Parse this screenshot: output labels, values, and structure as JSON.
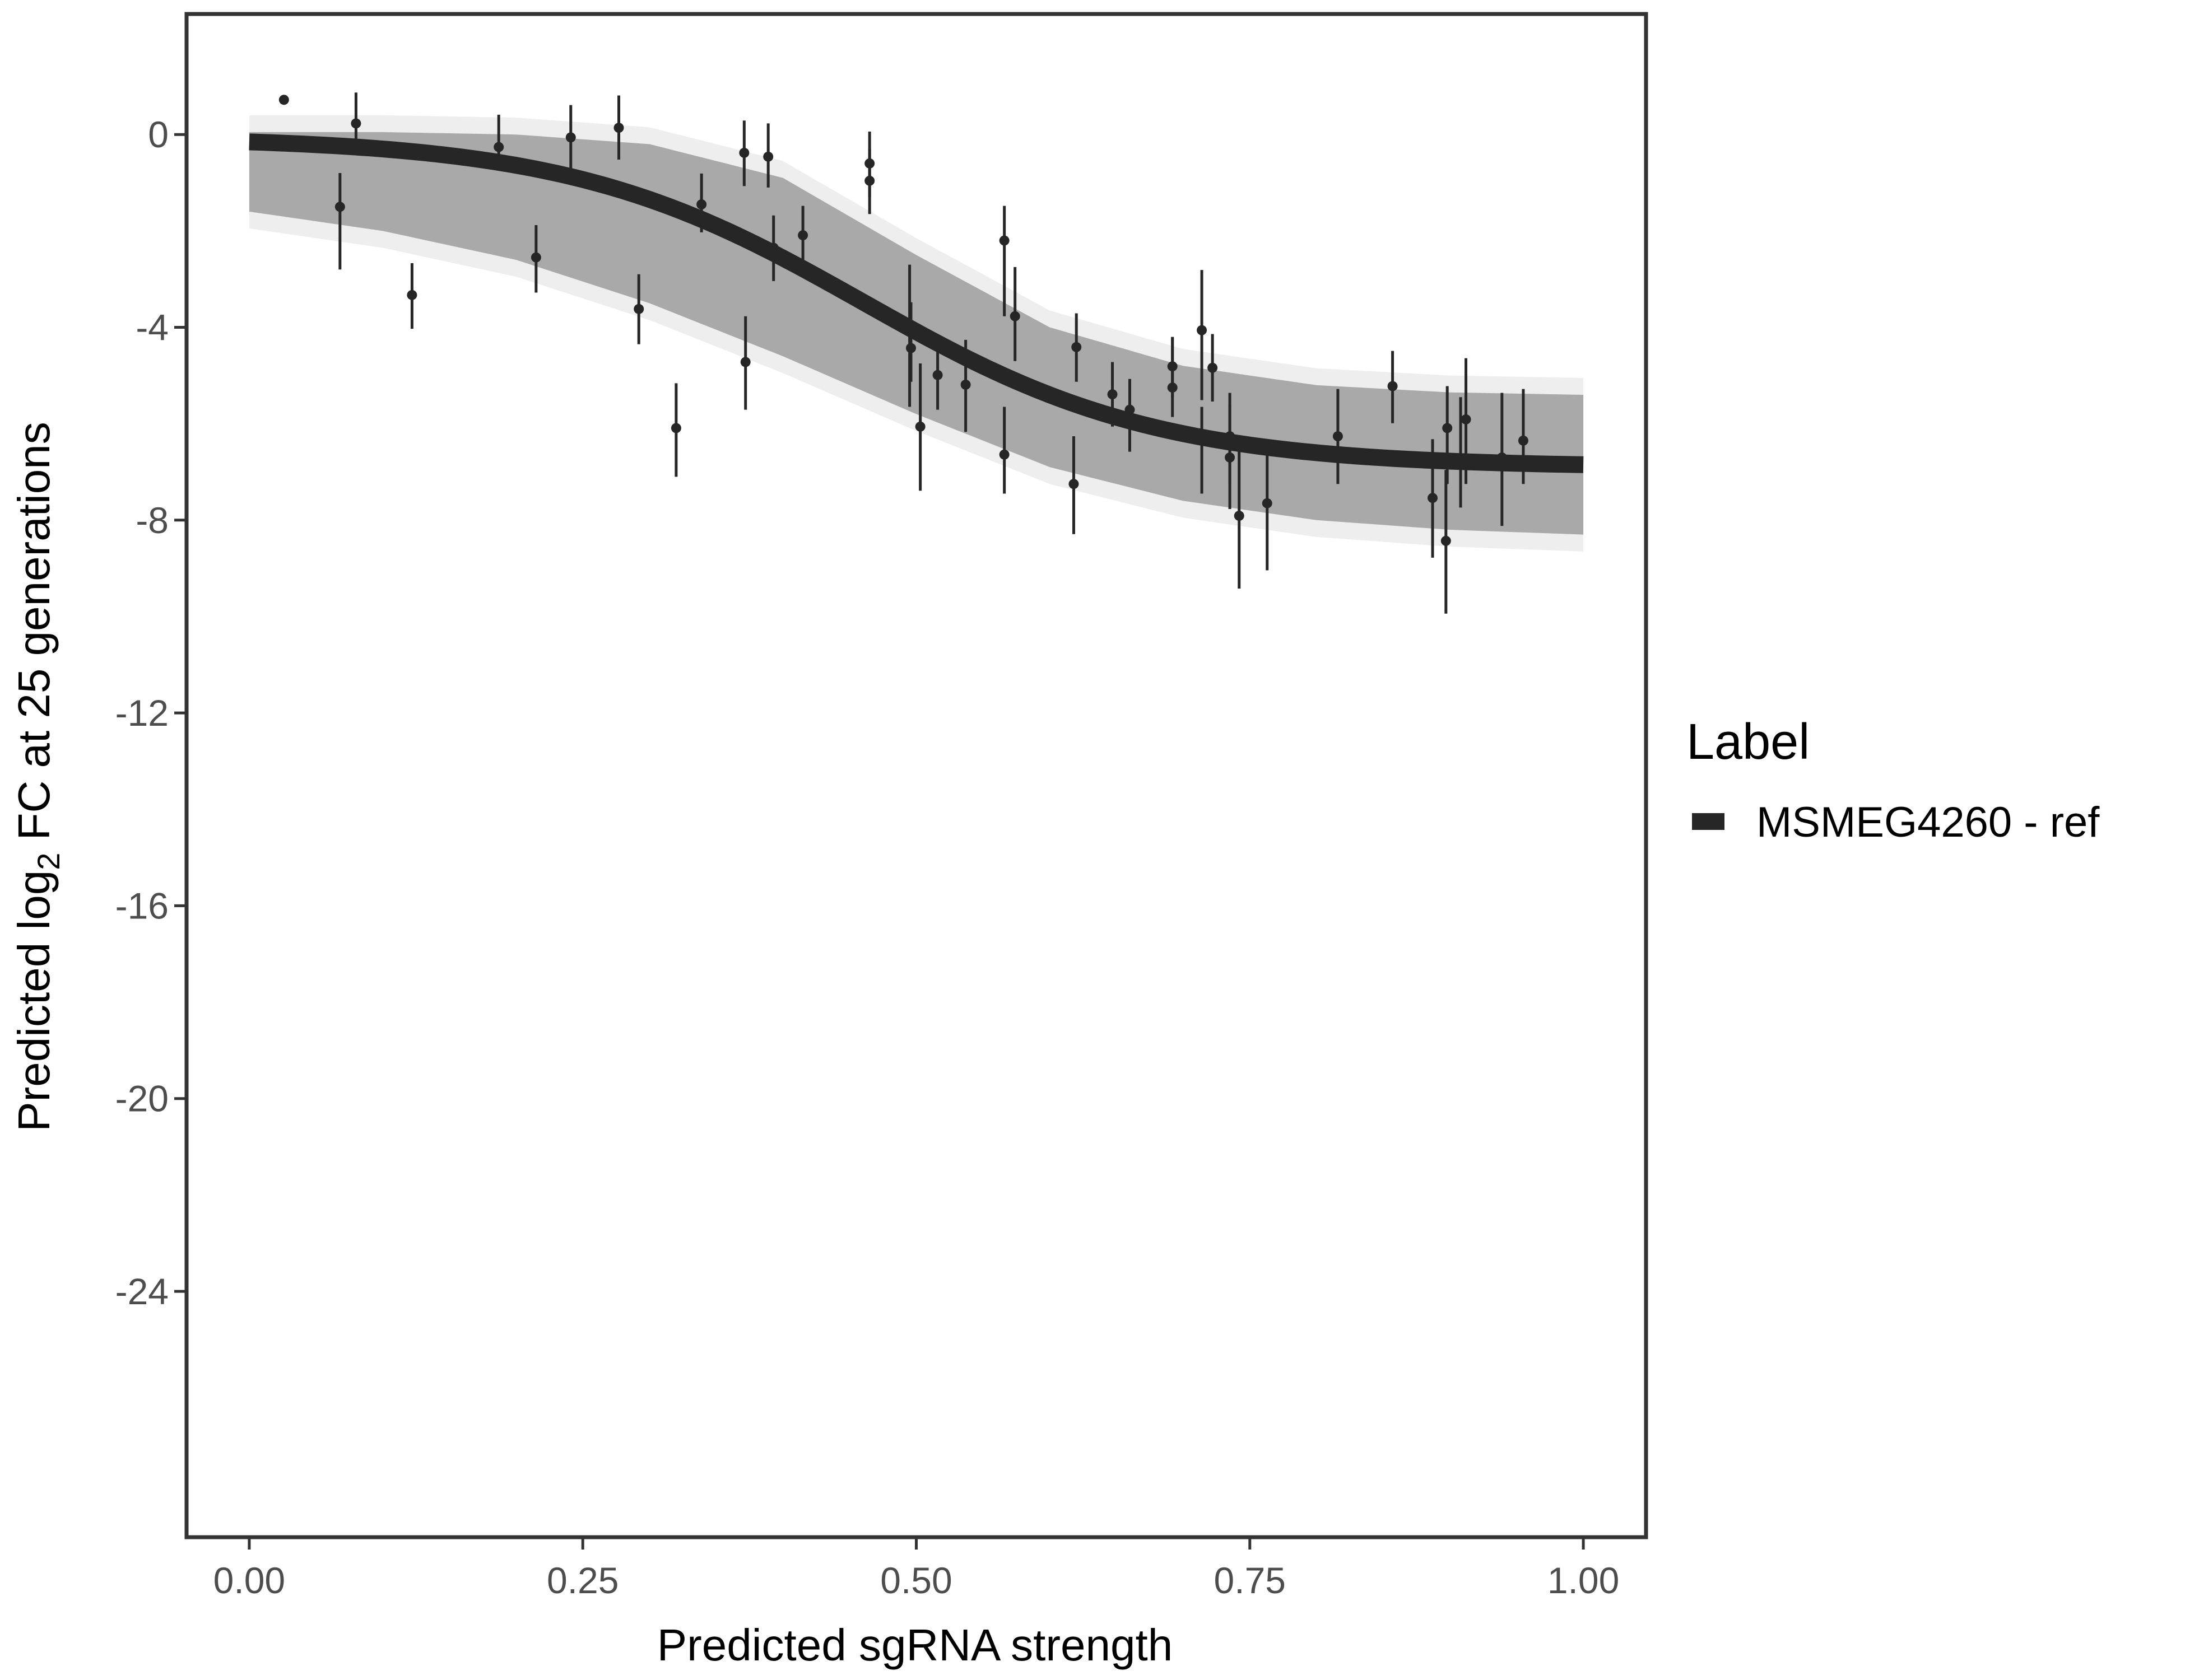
{
  "chart_data": {
    "type": "scatter",
    "title": "",
    "xlabel": "Predicted sgRNA strength",
    "ylabel": "Predicted log2 FC at 25 generations",
    "ylabel_parts": [
      "Predicted  log",
      "2",
      " FC at 25 generations"
    ],
    "xlim": [
      -0.047,
      1.047
    ],
    "ylim": [
      -29.1,
      2.5
    ],
    "x_ticks": [
      0,
      0.25,
      0.5,
      0.75,
      1
    ],
    "x_tick_labels": [
      "0.00",
      "0.25",
      "0.50",
      "0.75",
      "1.00"
    ],
    "y_ticks": [
      0,
      -4,
      -8,
      -12,
      -16,
      -20,
      -24
    ],
    "y_tick_labels": [
      "0",
      "-4",
      "-8",
      "-12",
      "-16",
      "-20",
      "-24"
    ],
    "grid": false,
    "legend": {
      "title": "Label",
      "position": "right",
      "entries": [
        {
          "label": "MSMEG4260 - ref",
          "color": "#262626"
        }
      ]
    },
    "colors": {
      "fit": "#262626",
      "ribbon": "#a9a9a9",
      "ribbon_edge": "#eeeeee",
      "points": "#262626",
      "frame": "#333333"
    },
    "fit_curve": {
      "model": "logistic",
      "y_top": -0.05,
      "amplitude": -6.85,
      "midpoint": 0.46,
      "scale": 0.11
    },
    "ribbon": {
      "x": [
        0,
        0.1,
        0.2,
        0.3,
        0.4,
        0.5,
        0.6,
        0.7,
        0.8,
        0.9,
        1.0
      ],
      "upper": [
        0.05,
        0.05,
        0.0,
        -0.2,
        -0.9,
        -2.5,
        -4.0,
        -4.8,
        -5.2,
        -5.35,
        -5.4
      ],
      "lower": [
        -1.6,
        -2.0,
        -2.6,
        -3.5,
        -4.6,
        -5.8,
        -6.9,
        -7.6,
        -8.0,
        -8.2,
        -8.3
      ]
    },
    "points": [
      {
        "x": 0.026,
        "y": 0.72,
        "lo": 0.72,
        "hi": 0.72
      },
      {
        "x": 0.068,
        "y": -1.5,
        "lo": -2.8,
        "hi": -0.8
      },
      {
        "x": 0.08,
        "y": 0.23,
        "lo": -0.43,
        "hi": 0.87
      },
      {
        "x": 0.122,
        "y": -3.33,
        "lo": -4.03,
        "hi": -2.67
      },
      {
        "x": 0.187,
        "y": -0.26,
        "lo": -0.75,
        "hi": 0.41
      },
      {
        "x": 0.215,
        "y": -2.55,
        "lo": -3.28,
        "hi": -1.88
      },
      {
        "x": 0.241,
        "y": -0.06,
        "lo": -0.78,
        "hi": 0.61
      },
      {
        "x": 0.277,
        "y": 0.14,
        "lo": -0.52,
        "hi": 0.81
      },
      {
        "x": 0.292,
        "y": -3.62,
        "lo": -4.35,
        "hi": -2.9
      },
      {
        "x": 0.32,
        "y": -6.09,
        "lo": -7.1,
        "hi": -5.16
      },
      {
        "x": 0.339,
        "y": -1.45,
        "lo": -2.03,
        "hi": -0.81
      },
      {
        "x": 0.371,
        "y": -0.38,
        "lo": -1.07,
        "hi": 0.29
      },
      {
        "x": 0.372,
        "y": -4.72,
        "lo": -5.71,
        "hi": -3.77
      },
      {
        "x": 0.389,
        "y": -0.46,
        "lo": -1.1,
        "hi": 0.23
      },
      {
        "x": 0.393,
        "y": -2.35,
        "lo": -3.04,
        "hi": -1.68
      },
      {
        "x": 0.415,
        "y": -2.09,
        "lo": -2.75,
        "hi": -1.48
      },
      {
        "x": 0.465,
        "y": -0.6,
        "lo": -1.3,
        "hi": 0.06
      },
      {
        "x": 0.465,
        "y": -0.96,
        "lo": -1.65,
        "hi": -0.29
      },
      {
        "x": 0.495,
        "y": -4.06,
        "lo": -5.65,
        "hi": -2.7
      },
      {
        "x": 0.496,
        "y": -4.43,
        "lo": -5.13,
        "hi": -3.48
      },
      {
        "x": 0.503,
        "y": -6.06,
        "lo": -7.39,
        "hi": -4.75
      },
      {
        "x": 0.516,
        "y": -4.99,
        "lo": -5.71,
        "hi": -4.35
      },
      {
        "x": 0.537,
        "y": -5.19,
        "lo": -6.17,
        "hi": -4.26
      },
      {
        "x": 0.566,
        "y": -2.2,
        "lo": -3.77,
        "hi": -1.48
      },
      {
        "x": 0.566,
        "y": -6.64,
        "lo": -7.45,
        "hi": -5.65
      },
      {
        "x": 0.574,
        "y": -3.77,
        "lo": -4.7,
        "hi": -2.75
      },
      {
        "x": 0.618,
        "y": -7.25,
        "lo": -8.29,
        "hi": -6.26
      },
      {
        "x": 0.62,
        "y": -4.41,
        "lo": -5.13,
        "hi": -3.71
      },
      {
        "x": 0.647,
        "y": -5.39,
        "lo": -6.06,
        "hi": -4.72
      },
      {
        "x": 0.66,
        "y": -5.71,
        "lo": -6.58,
        "hi": -5.07
      },
      {
        "x": 0.692,
        "y": -5.25,
        "lo": -5.86,
        "hi": -4.2
      },
      {
        "x": 0.692,
        "y": -4.81,
        "lo": -5.45,
        "hi": -4.2
      },
      {
        "x": 0.714,
        "y": -4.06,
        "lo": -5.51,
        "hi": -2.81
      },
      {
        "x": 0.714,
        "y": -6.26,
        "lo": -7.45,
        "hi": -5.65
      },
      {
        "x": 0.722,
        "y": -4.84,
        "lo": -5.54,
        "hi": -4.14
      },
      {
        "x": 0.735,
        "y": -6.26,
        "lo": -7.25,
        "hi": -5.36
      },
      {
        "x": 0.735,
        "y": -6.7,
        "lo": -7.77,
        "hi": -5.59
      },
      {
        "x": 0.742,
        "y": -7.91,
        "lo": -9.42,
        "hi": -6.46
      },
      {
        "x": 0.763,
        "y": -7.65,
        "lo": -9.04,
        "hi": -6.41
      },
      {
        "x": 0.816,
        "y": -6.26,
        "lo": -7.25,
        "hi": -5.28
      },
      {
        "x": 0.857,
        "y": -5.22,
        "lo": -5.99,
        "hi": -4.49
      },
      {
        "x": 0.887,
        "y": -7.54,
        "lo": -8.78,
        "hi": -6.32
      },
      {
        "x": 0.897,
        "y": -8.43,
        "lo": -9.94,
        "hi": -6.96
      },
      {
        "x": 0.898,
        "y": -6.09,
        "lo": -7.25,
        "hi": -5.22
      },
      {
        "x": 0.908,
        "y": -6.75,
        "lo": -7.74,
        "hi": -5.45
      },
      {
        "x": 0.912,
        "y": -5.91,
        "lo": -7.25,
        "hi": -4.64
      },
      {
        "x": 0.939,
        "y": -6.7,
        "lo": -8.12,
        "hi": -5.36
      },
      {
        "x": 0.955,
        "y": -6.35,
        "lo": -7.25,
        "hi": -5.28
      }
    ]
  }
}
